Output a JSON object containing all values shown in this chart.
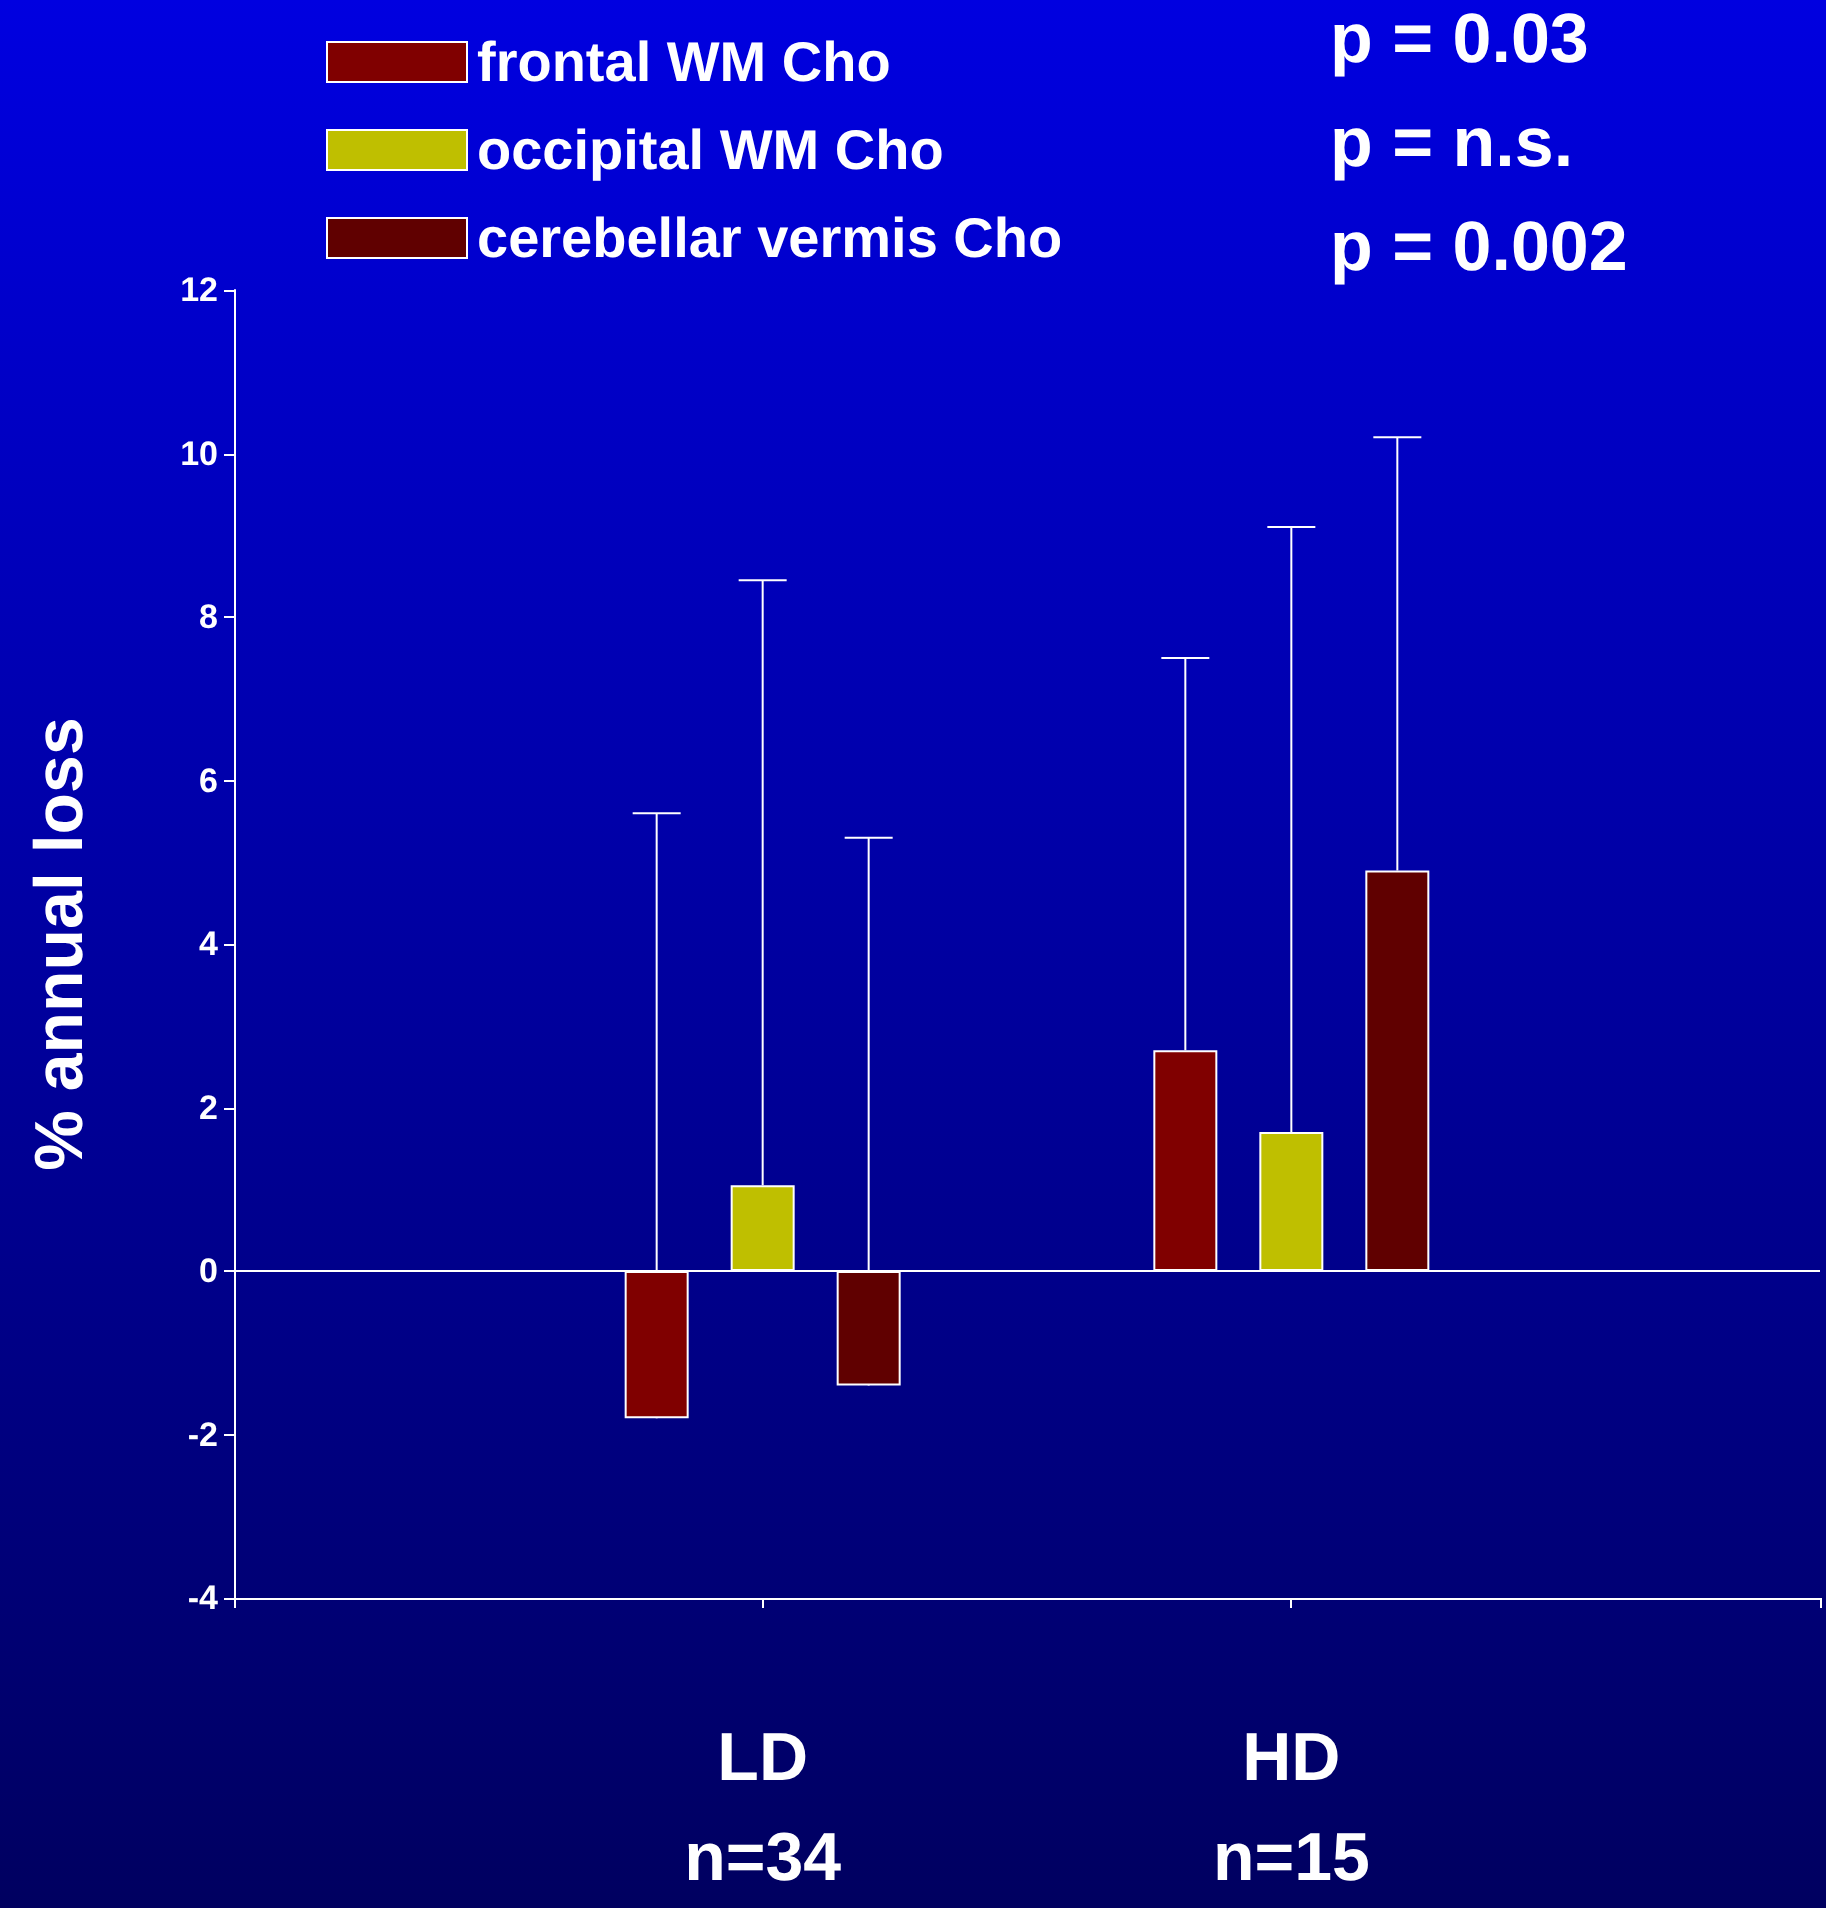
{
  "chart_data": {
    "type": "bar",
    "categories": [
      null,
      "LD\nn=34",
      "HD\nn=15",
      null
    ],
    "ylabel": "% annual loss",
    "ylim": [
      -4,
      12
    ],
    "yticks": [
      -4,
      -2,
      0,
      2,
      4,
      6,
      8,
      10,
      12
    ],
    "series": [
      {
        "name": "frontal WM Cho",
        "color": "#800000",
        "values": [
          null,
          -1.8,
          2.7,
          null
        ],
        "errors": [
          null,
          [
            -1.8,
            5.6
          ],
          [
            2.7,
            7.5
          ],
          null
        ]
      },
      {
        "name": "occipital WM Cho",
        "color": "#bfbf00",
        "values": [
          null,
          1.05,
          1.7,
          null
        ],
        "errors": [
          null,
          [
            1.05,
            8.45
          ],
          [
            1.7,
            9.1
          ],
          null
        ]
      },
      {
        "name": "cerebellar vermis Cho",
        "color": "#600000",
        "values": [
          null,
          -1.4,
          4.9,
          null
        ],
        "errors": [
          null,
          [
            -1.4,
            5.3
          ],
          [
            4.9,
            10.2
          ],
          null
        ]
      }
    ],
    "ref_lines": [
      {
        "axis": "y",
        "value": 0,
        "color": "#ffffff"
      }
    ],
    "annotations": [
      "p = 0.03",
      "p = n.s.",
      "p = 0.002"
    ],
    "legend": "top left",
    "grid": false
  }
}
